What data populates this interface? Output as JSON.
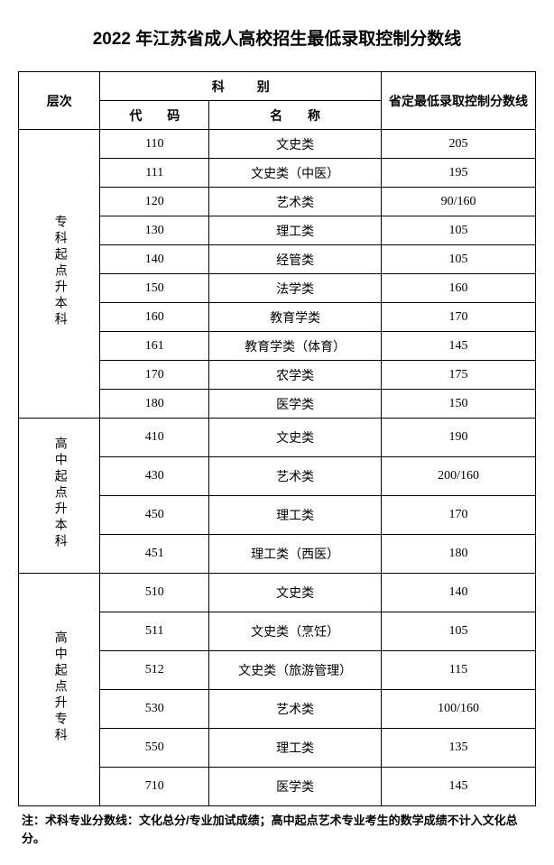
{
  "title": "2022 年江苏省成人高校招生最低录取控制分数线",
  "headers": {
    "level": "层次",
    "ke_bie": "科别",
    "code": "代 码",
    "name": "名 称",
    "score": "省定最低录取控制分数线"
  },
  "sections": [
    {
      "level_label": "专科起点升本科",
      "rows": [
        {
          "code": "110",
          "name": "文史类",
          "score": "205"
        },
        {
          "code": "111",
          "name": "文史类（中医）",
          "score": "195"
        },
        {
          "code": "120",
          "name": "艺术类",
          "score": "90/160"
        },
        {
          "code": "130",
          "name": "理工类",
          "score": "105"
        },
        {
          "code": "140",
          "name": "经管类",
          "score": "105"
        },
        {
          "code": "150",
          "name": "法学类",
          "score": "160"
        },
        {
          "code": "160",
          "name": "教育学类",
          "score": "170"
        },
        {
          "code": "161",
          "name": "教育学类（体育）",
          "score": "145"
        },
        {
          "code": "170",
          "name": "农学类",
          "score": "175"
        },
        {
          "code": "180",
          "name": "医学类",
          "score": "150"
        }
      ]
    },
    {
      "level_label": "高中起点升本科",
      "rows": [
        {
          "code": "410",
          "name": "文史类",
          "score": "190"
        },
        {
          "code": "430",
          "name": "艺术类",
          "score": "200/160"
        },
        {
          "code": "450",
          "name": "理工类",
          "score": "170"
        },
        {
          "code": "451",
          "name": "理工类（西医）",
          "score": "180"
        }
      ]
    },
    {
      "level_label": "高中起点升专科",
      "rows": [
        {
          "code": "510",
          "name": "文史类",
          "score": "140"
        },
        {
          "code": "511",
          "name": "文史类（烹饪）",
          "score": "105"
        },
        {
          "code": "512",
          "name": "文史类（旅游管理）",
          "score": "115"
        },
        {
          "code": "530",
          "name": "艺术类",
          "score": "100/160"
        },
        {
          "code": "550",
          "name": "理工类",
          "score": "135"
        },
        {
          "code": "710",
          "name": "医学类",
          "score": "145"
        }
      ]
    }
  ],
  "note": "注：术科专业分数线：文化总分/专业加试成绩；高中起点艺术专业考生的数学成绩不计入文化总分。"
}
